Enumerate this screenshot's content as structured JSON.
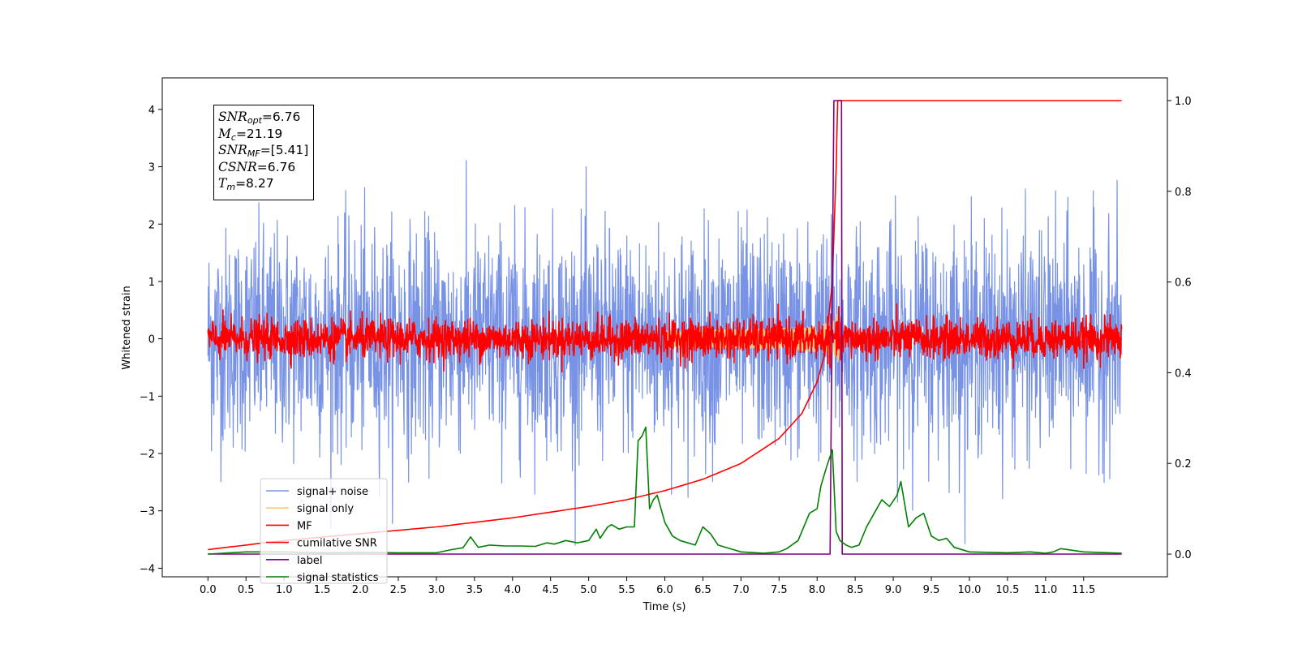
{
  "chart_data": {
    "type": "line",
    "xlabel": "Time (s)",
    "ylabel": "Whitened strain",
    "xlim": [
      -0.6,
      12.6
    ],
    "ylim": [
      -4.15,
      4.55
    ],
    "y2lim": [
      -0.05,
      1.05
    ],
    "x_ticks": [
      "0.0",
      "0.5",
      "1.0",
      "1.5",
      "2.0",
      "2.5",
      "3.0",
      "3.5",
      "4.0",
      "4.5",
      "5.0",
      "5.5",
      "6.0",
      "6.5",
      "7.0",
      "7.5",
      "8.0",
      "8.5",
      "9.0",
      "9.5",
      "10.0",
      "10.5",
      "11.0",
      "11.5"
    ],
    "y_ticks": [
      "4",
      "3",
      "2",
      "1",
      "0",
      "−1",
      "−2",
      "−3",
      "−4"
    ],
    "y2_ticks": [
      "1.0",
      "0.8",
      "0.6",
      "0.4",
      "0.2",
      "0.0"
    ],
    "annotation": {
      "snr_opt_label": "SNR",
      "snr_opt_sub": "opt",
      "snr_opt_value": "=6.76",
      "mc_label": "M",
      "mc_sub": "c",
      "mc_value": "=21.19",
      "snr_mf_label": "SNR",
      "snr_mf_sub": "MF",
      "snr_mf_value": "=[5.41]",
      "csnr_label": "CSNR",
      "csnr_value": "=6.76",
      "tm_label": "T",
      "tm_sub": "m",
      "tm_value": "=8.27"
    },
    "series": [
      {
        "name": "signal+ noise",
        "color": "#7893e6",
        "axis": "left",
        "kind": "noise",
        "std": 0.95,
        "range": [
          0.0,
          12.0
        ]
      },
      {
        "name": "signal only",
        "color": "#f7c97d",
        "axis": "left",
        "kind": "chirp",
        "peak_time": 8.27,
        "peak_amplitude": 0.45
      },
      {
        "name": "MF",
        "color": "#ff0000",
        "axis": "left",
        "kind": "noise",
        "std": 0.17,
        "range": [
          0.0,
          12.0
        ]
      },
      {
        "name": "cumilative SNR",
        "color": "#ff0000",
        "axis": "right",
        "x": [
          0.0,
          1.0,
          2.0,
          3.0,
          4.0,
          5.0,
          5.5,
          6.0,
          6.5,
          7.0,
          7.5,
          7.8,
          8.0,
          8.1,
          8.2,
          8.25,
          8.27,
          12.0
        ],
        "y": [
          0.01,
          0.03,
          0.045,
          0.06,
          0.08,
          0.105,
          0.12,
          0.14,
          0.165,
          0.2,
          0.255,
          0.31,
          0.38,
          0.44,
          0.6,
          0.85,
          1.0,
          1.0
        ]
      },
      {
        "name": "label",
        "color": "#800080",
        "axis": "right",
        "x": [
          0.0,
          8.17,
          8.22,
          8.32,
          8.33,
          12.0
        ],
        "y": [
          0.0,
          0.0,
          1.0,
          1.0,
          0.0,
          0.0
        ]
      },
      {
        "name": "signal statistics",
        "color": "#008000",
        "axis": "right",
        "x": [
          0.0,
          0.5,
          1.0,
          1.5,
          2.0,
          2.5,
          3.0,
          3.2,
          3.35,
          3.45,
          3.55,
          3.7,
          3.9,
          4.1,
          4.3,
          4.45,
          4.55,
          4.7,
          4.85,
          5.0,
          5.1,
          5.15,
          5.25,
          5.3,
          5.4,
          5.5,
          5.6,
          5.65,
          5.7,
          5.75,
          5.8,
          5.85,
          5.9,
          6.0,
          6.1,
          6.2,
          6.4,
          6.5,
          6.6,
          6.7,
          6.9,
          7.0,
          7.3,
          7.5,
          7.6,
          7.75,
          7.9,
          8.0,
          8.05,
          8.12,
          8.2,
          8.25,
          8.3,
          8.38,
          8.45,
          8.55,
          8.65,
          8.75,
          8.85,
          8.95,
          9.05,
          9.1,
          9.2,
          9.3,
          9.4,
          9.5,
          9.6,
          9.7,
          9.8,
          10.0,
          10.5,
          10.8,
          11.0,
          11.1,
          11.2,
          11.5,
          12.0
        ],
        "y": [
          0.0,
          0.005,
          0.005,
          0.003,
          0.004,
          0.003,
          0.003,
          0.01,
          0.014,
          0.038,
          0.015,
          0.02,
          0.018,
          0.018,
          0.017,
          0.025,
          0.022,
          0.03,
          0.025,
          0.03,
          0.055,
          0.035,
          0.06,
          0.065,
          0.055,
          0.06,
          0.06,
          0.25,
          0.26,
          0.28,
          0.1,
          0.12,
          0.13,
          0.07,
          0.04,
          0.03,
          0.02,
          0.06,
          0.045,
          0.02,
          0.01,
          0.005,
          0.002,
          0.005,
          0.012,
          0.03,
          0.09,
          0.1,
          0.15,
          0.19,
          0.23,
          0.05,
          0.03,
          0.02,
          0.015,
          0.02,
          0.06,
          0.09,
          0.12,
          0.105,
          0.13,
          0.16,
          0.06,
          0.08,
          0.09,
          0.04,
          0.03,
          0.035,
          0.015,
          0.005,
          0.003,
          0.005,
          0.002,
          0.005,
          0.012,
          0.005,
          0.002
        ]
      }
    ],
    "legend_position": "lower-left",
    "grid": false
  }
}
